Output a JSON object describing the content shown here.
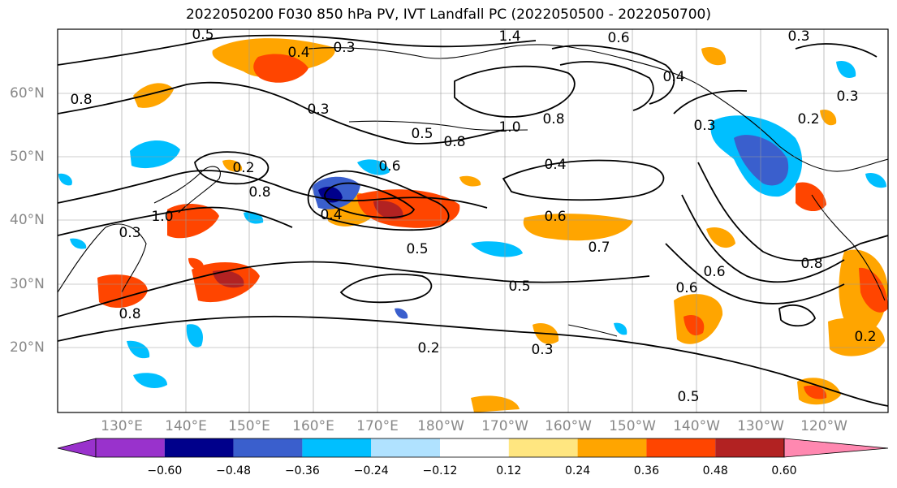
{
  "title": "2022050200 F030 850 hPa PV, IVT Landfall PC (2022050500 - 2022050700)",
  "lat_labels": [
    "60°N",
    "50°N",
    "40°N",
    "30°N",
    "20°N"
  ],
  "lon_labels": [
    "130°E",
    "140°E",
    "150°E",
    "160°E",
    "170°E",
    "180°W",
    "170°W",
    "160°W",
    "150°W",
    "140°W",
    "130°W",
    "120°W"
  ],
  "colorbar": {
    "ticks": [
      "−0.60",
      "−0.48",
      "−0.36",
      "−0.24",
      "−0.12",
      "0.12",
      "0.24",
      "0.36",
      "0.48",
      "0.60"
    ],
    "colors": [
      "#9932cc",
      "#00008b",
      "#3a5fcd",
      "#00bfff",
      "#b0e2ff",
      "#ffffff",
      "#ffe680",
      "#ffa500",
      "#ff4500",
      "#b22222",
      "#ff88b0"
    ]
  },
  "contour_labels": [
    "0.5",
    "0.4",
    "0.3",
    "1.4",
    "0.6",
    "0.8",
    "0.6",
    "0.2",
    "0.3",
    "0.4",
    "0.5",
    "1.0",
    "0.8",
    "0.5",
    "0.4",
    "0.6",
    "0.7",
    "0.6",
    "0.8",
    "0.5",
    "0.8",
    "0.2",
    "0.3",
    "0.5",
    "0.6",
    "0.4",
    "0.3",
    "0.8",
    "1.0",
    "0.3",
    "0.3",
    "0.2",
    "0.3",
    "0.2",
    "0.8"
  ]
}
